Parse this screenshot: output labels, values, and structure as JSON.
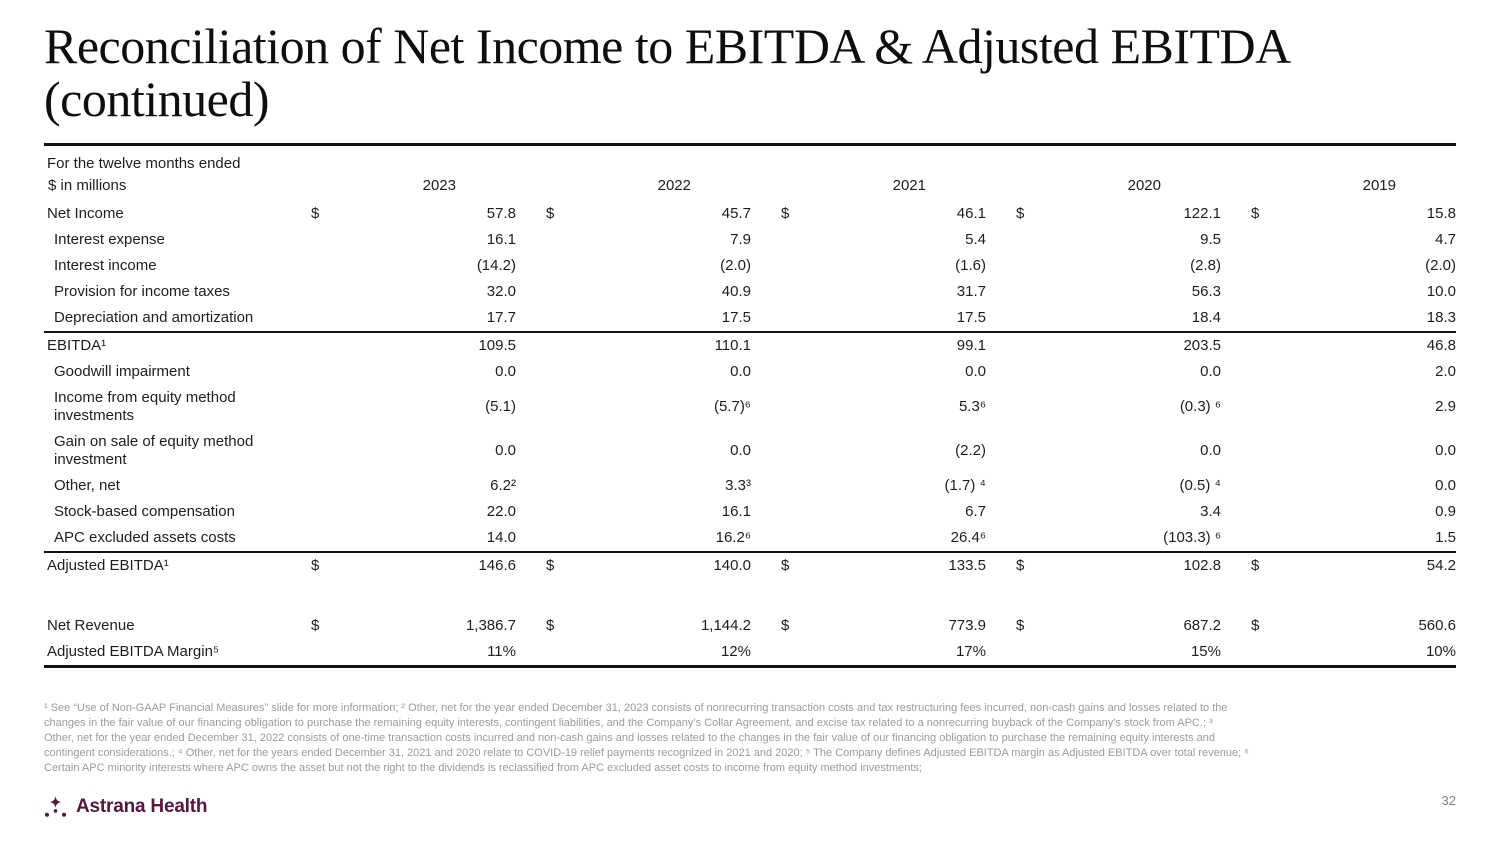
{
  "slide": {
    "title": {
      "line1": "Reconciliation of Net Income to EBITDA & Adjusted EBITDA",
      "line2": "(continued)"
    },
    "page_number": "32",
    "brand_name": "Astrana Health",
    "brand_color": "#551640"
  },
  "table": {
    "period_label": "For the twelve months ended",
    "units_label": "$ in millions",
    "dollar_sign": "$",
    "years": [
      "2023",
      "2022",
      "2021",
      "2020",
      "2019"
    ],
    "rows": [
      {
        "label": "Net Income",
        "kind": "lead",
        "indent": false,
        "dollar": true,
        "values": [
          "57.8",
          "45.7",
          "46.1",
          "122.1",
          "15.8"
        ]
      },
      {
        "label": "Interest expense",
        "kind": "item",
        "indent": true,
        "dollar": false,
        "values": [
          "16.1",
          "7.9",
          "5.4",
          "9.5",
          "4.7"
        ]
      },
      {
        "label": "Interest income",
        "kind": "item",
        "indent": true,
        "dollar": false,
        "values": [
          "(14.2)",
          "(2.0)",
          "(1.6)",
          "(2.8)",
          "(2.0)"
        ]
      },
      {
        "label": "Provision for income taxes",
        "kind": "item",
        "indent": true,
        "dollar": false,
        "values": [
          "32.0",
          "40.9",
          "31.7",
          "56.3",
          "10.0"
        ]
      },
      {
        "label": "Depreciation and amortization",
        "kind": "item",
        "indent": true,
        "dollar": false,
        "values": [
          "17.7",
          "17.5",
          "17.5",
          "18.4",
          "18.3"
        ]
      },
      {
        "label": "EBITDA¹",
        "kind": "subtotal",
        "indent": false,
        "dollar": false,
        "values": [
          "109.5",
          "110.1",
          "99.1",
          "203.5",
          "46.8"
        ]
      },
      {
        "label": "Goodwill impairment",
        "kind": "item",
        "indent": true,
        "dollar": false,
        "values": [
          "0.0",
          "0.0",
          "0.0",
          "0.0",
          "2.0"
        ]
      },
      {
        "label": "Income from equity method investments",
        "kind": "item",
        "indent": true,
        "dollar": false,
        "values": [
          "(5.1)",
          "(5.7)⁶",
          "5.3⁶",
          "(0.3) ⁶",
          "2.9"
        ]
      },
      {
        "label": "Gain on sale of equity method investment",
        "kind": "item",
        "indent": true,
        "dollar": false,
        "values": [
          "0.0",
          "0.0",
          "(2.2)",
          "0.0",
          "0.0"
        ]
      },
      {
        "label": "Other, net",
        "kind": "item",
        "indent": true,
        "dollar": false,
        "values": [
          "6.2²",
          "3.3³",
          "(1.7) ⁴",
          "(0.5) ⁴",
          "0.0"
        ]
      },
      {
        "label": "Stock-based compensation",
        "kind": "item",
        "indent": true,
        "dollar": false,
        "values": [
          "22.0",
          "16.1",
          "6.7",
          "3.4",
          "0.9"
        ]
      },
      {
        "label": "APC excluded assets costs",
        "kind": "item",
        "indent": true,
        "dollar": false,
        "values": [
          "14.0",
          "16.2⁶",
          "26.4⁶",
          "(103.3) ⁶",
          "1.5"
        ]
      },
      {
        "label": "Adjusted EBITDA¹",
        "kind": "total",
        "indent": false,
        "dollar": true,
        "values": [
          "146.6",
          "140.0",
          "133.5",
          "102.8",
          "54.2"
        ]
      },
      {
        "label": "Net Revenue",
        "kind": "revenue",
        "indent": false,
        "dollar": true,
        "values": [
          "1,386.7",
          "1,144.2",
          "773.9",
          "687.2",
          "560.6"
        ]
      },
      {
        "label": "Adjusted EBITDA Margin⁵",
        "kind": "margin",
        "indent": false,
        "dollar": false,
        "values": [
          "11%",
          "12%",
          "17%",
          "15%",
          "10%"
        ]
      }
    ]
  },
  "footnotes": {
    "lines": [
      "¹ See “Use of Non-GAAP Financial Measures” slide for more information; ² Other, net for the year ended December 31, 2023 consists of nonrecurring transaction costs and tax restructuring fees incurred,  non-cash gains and losses related to the",
      "changes in the fair value of our financing obligation to purchase the remaining equity interests, contingent liabilities,  and the Company’s Collar Agreement, and excise tax related to a nonrecurring buyback of the Company’s stock from APC.; ³",
      "Other, net for the year ended December 31, 2022 consists of one-time transaction costs incurred and non-cash gains and losses related to the changes in the fair value of our financing obligation to purchase the remaining equity interests and",
      "contingent considerations.; ⁴ Other, net for the years ended December 31, 2021 and 2020 relate to COVID-19 relief payments recognized in 2021 and 2020; ⁵ The Company defines Adjusted EBITDA margin as Adjusted EBITDA over total revenue; ⁶",
      "Certain APC minority interests where APC owns the asset but not the right to the dividends is reclassified from APC excluded  asset costs to income from equity method investments;"
    ]
  }
}
